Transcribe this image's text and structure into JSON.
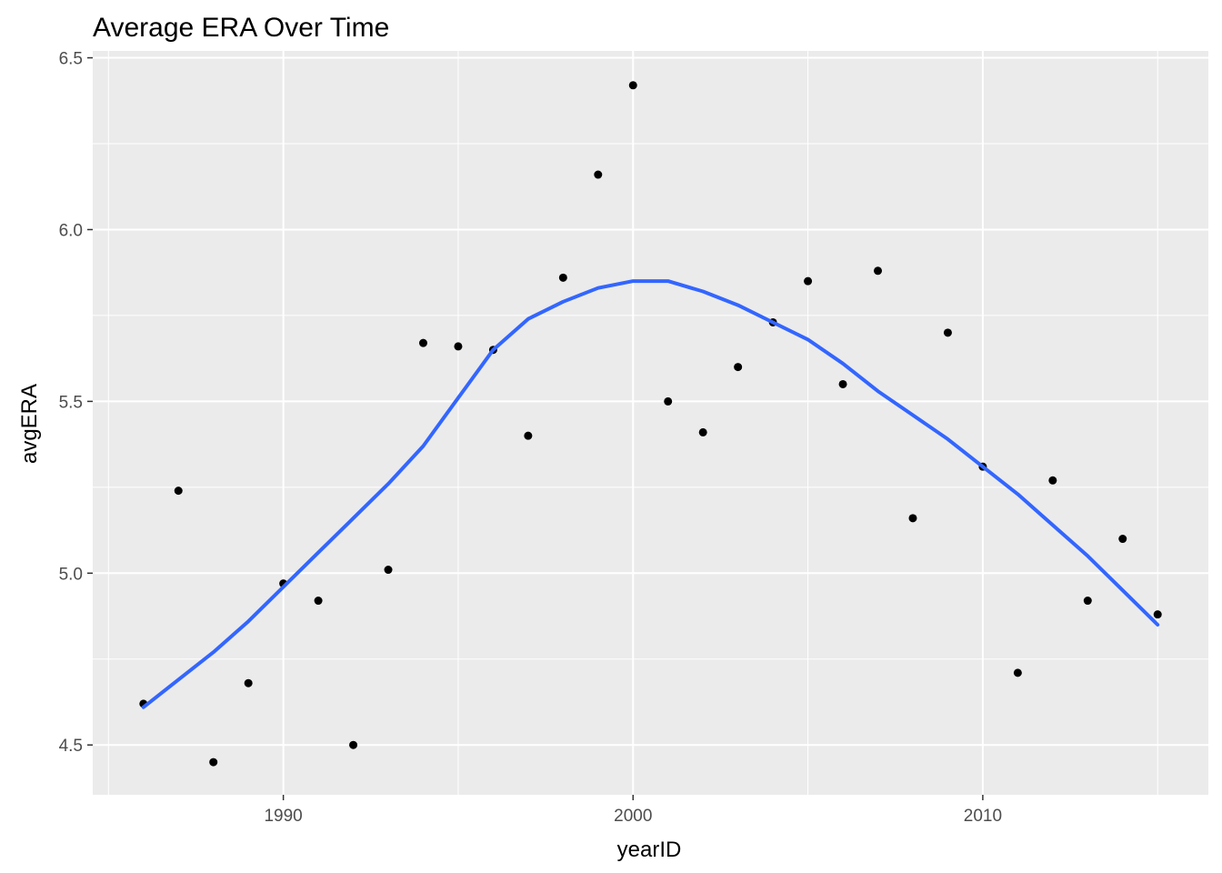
{
  "chart_data": {
    "type": "scatter",
    "title": "Average ERA Over Time",
    "xlabel": "yearID",
    "ylabel": "avgERA",
    "xlim": [
      1984.55,
      2016.45
    ],
    "ylim": [
      4.355,
      6.52
    ],
    "x_ticks": [
      1990,
      2000,
      2010
    ],
    "y_ticks": [
      4.5,
      5.0,
      5.5,
      6.0,
      6.5
    ],
    "y_tick_labels": [
      "4.5",
      "5.0",
      "5.5",
      "6.0",
      "6.5"
    ],
    "grid": true,
    "legend": "none",
    "colors": {
      "panel_background": "#ebebeb",
      "grid": "#ffffff",
      "points": "#000000",
      "smooth_line": "#3366ff"
    },
    "points": {
      "x": [
        1986,
        1987,
        1988,
        1989,
        1990,
        1991,
        1992,
        1993,
        1994,
        1995,
        1996,
        1997,
        1998,
        1999,
        2000,
        2001,
        2002,
        2003,
        2004,
        2005,
        2006,
        2007,
        2008,
        2009,
        2010,
        2011,
        2012,
        2013,
        2014,
        2015
      ],
      "y": [
        4.62,
        5.24,
        4.45,
        4.68,
        4.97,
        4.92,
        4.5,
        5.01,
        5.67,
        5.66,
        5.65,
        5.4,
        5.86,
        6.16,
        6.42,
        5.5,
        5.41,
        5.6,
        5.73,
        5.85,
        5.55,
        5.88,
        5.16,
        5.7,
        5.31,
        4.71,
        5.27,
        4.92,
        5.1,
        4.88
      ]
    },
    "smooth": {
      "name": "loess",
      "x": [
        1986,
        1987,
        1988,
        1989,
        1990,
        1991,
        1992,
        1993,
        1994,
        1995,
        1996,
        1997,
        1998,
        1999,
        2000,
        2001,
        2002,
        2003,
        2004,
        2005,
        2006,
        2007,
        2008,
        2009,
        2010,
        2011,
        2012,
        2013,
        2014,
        2015
      ],
      "y": [
        4.61,
        4.69,
        4.77,
        4.86,
        4.96,
        5.06,
        5.16,
        5.26,
        5.37,
        5.51,
        5.65,
        5.74,
        5.79,
        5.83,
        5.85,
        5.85,
        5.82,
        5.78,
        5.73,
        5.68,
        5.61,
        5.53,
        5.46,
        5.39,
        5.31,
        5.23,
        5.14,
        5.05,
        4.95,
        4.85
      ]
    }
  }
}
